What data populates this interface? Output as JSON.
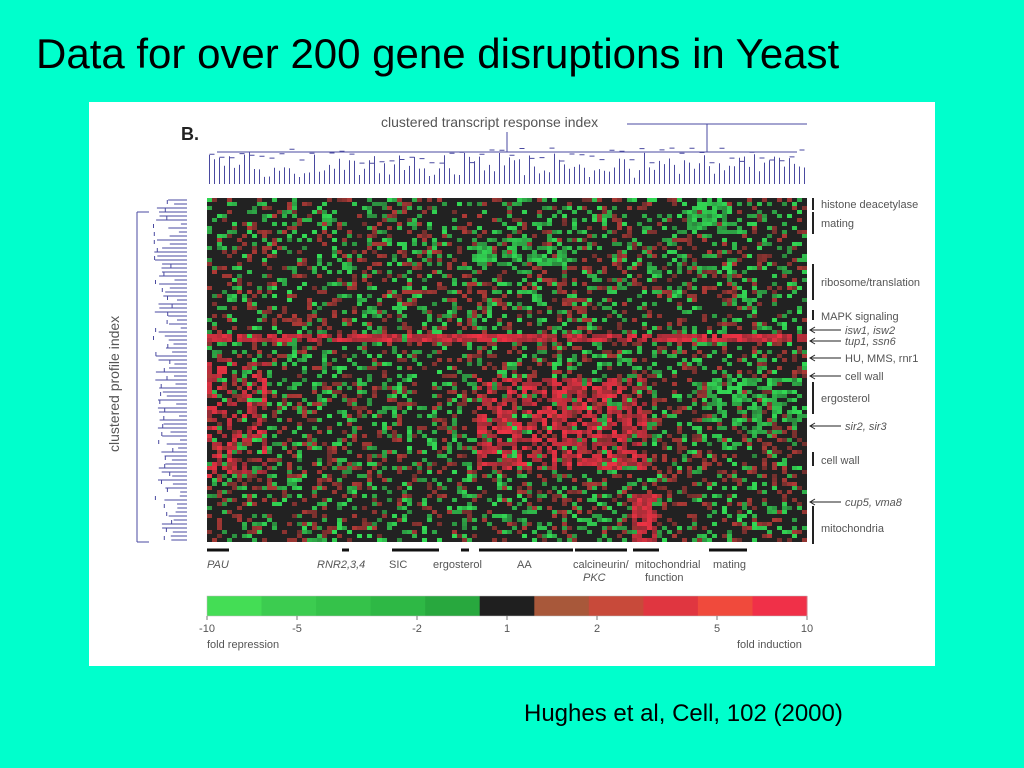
{
  "slide": {
    "title": "Data for over 200 gene disruptions in Yeast",
    "citation": "Hughes et al, Cell, 102 (2000)"
  },
  "colors": {
    "background": "#00ffcc",
    "figure_bg": "#ffffff",
    "dendrogram": "#4a4aa0",
    "repression": "#33dd55",
    "neutral": "#222222",
    "induction": "#ee3344"
  },
  "chart_data": {
    "type": "heatmap",
    "panel_label": "B.",
    "xlabel": "clustered transcript response index",
    "ylabel": "clustered profile index",
    "row_annotations": [
      {
        "text": "histone deacetylase",
        "italic": false,
        "arrow": false
      },
      {
        "text": "mating",
        "italic": false,
        "arrow": false
      },
      {
        "text": "ribosome/translation",
        "italic": false,
        "arrow": false
      },
      {
        "text": "MAPK signaling",
        "italic": false,
        "arrow": false
      },
      {
        "text": "isw1, isw2",
        "italic": true,
        "arrow": true
      },
      {
        "text": "tup1, ssn6",
        "italic": true,
        "arrow": true
      },
      {
        "text": "HU, MMS, rnr1",
        "italic": false,
        "arrow": true
      },
      {
        "text": "cell wall",
        "italic": false,
        "arrow": true
      },
      {
        "text": "ergosterol",
        "italic": false,
        "arrow": false
      },
      {
        "text": "sir2, sir3",
        "italic": true,
        "arrow": true
      },
      {
        "text": "cell wall",
        "italic": false,
        "arrow": false
      },
      {
        "text": "cup5, vma8",
        "italic": true,
        "arrow": true
      },
      {
        "text": "mitochondria",
        "italic": false,
        "arrow": false
      }
    ],
    "column_annotations": [
      {
        "text": "PAU",
        "italic": true
      },
      {
        "text": "RNR2,3,4",
        "italic": true
      },
      {
        "text": "SIC",
        "italic": false
      },
      {
        "text": "ergosterol",
        "italic": false
      },
      {
        "text": "AA",
        "italic": false
      },
      {
        "text": "calcineurin/",
        "line2": "PKC",
        "italic": false
      },
      {
        "text": "mitochondrial",
        "line2": "function",
        "italic": false
      },
      {
        "text": "mating",
        "italic": false
      }
    ],
    "colorbar": {
      "ticks": [
        "-10",
        "-5",
        "-2",
        "1",
        "2",
        "5",
        "10"
      ],
      "tick_values": [
        -10,
        -5,
        -2,
        1,
        2,
        5,
        10
      ],
      "left_caption": "fold repression",
      "right_caption": "fold induction",
      "colors": [
        "#44dd55",
        "#3ccc50",
        "#35c24a",
        "#2eb845",
        "#28a83e",
        "#1f1f1f",
        "#a8583a",
        "#c84a3a",
        "#e03640",
        "#f04a3c",
        "#f03048"
      ]
    },
    "legend": "colorbar at bottom"
  }
}
